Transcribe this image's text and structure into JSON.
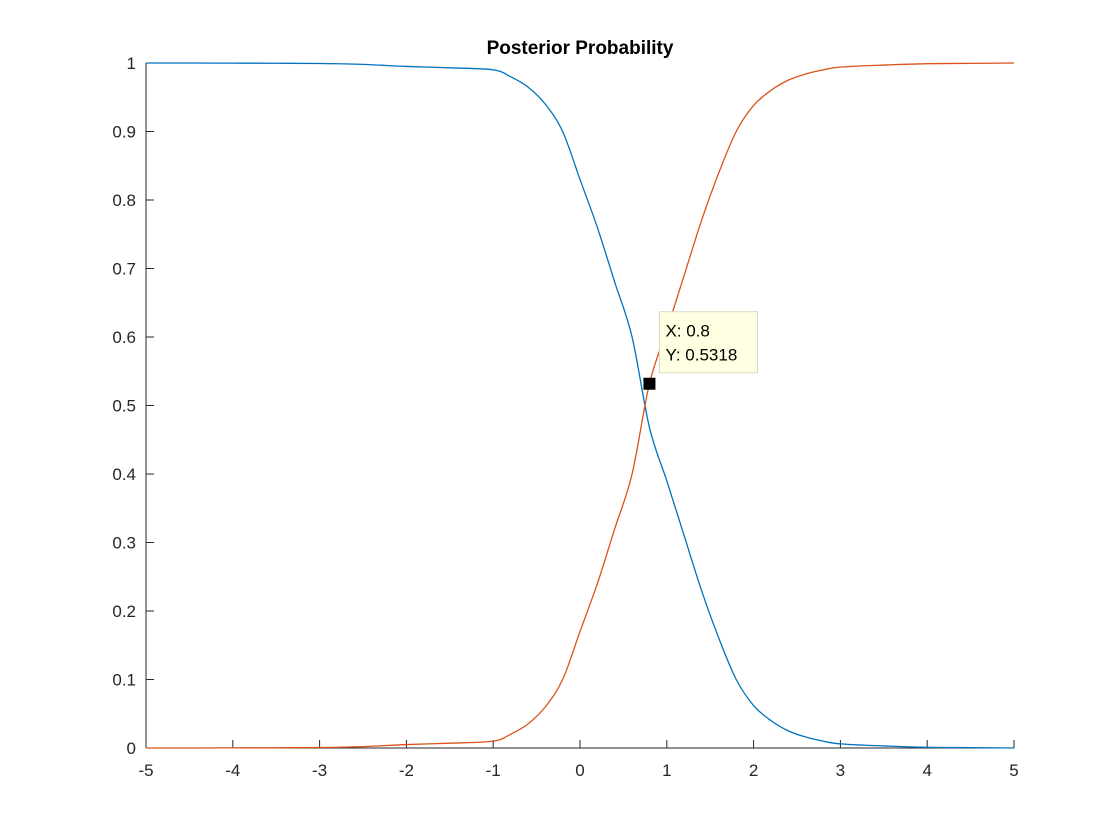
{
  "chart_data": {
    "type": "line",
    "title": "Posterior Probability",
    "xlabel": "",
    "ylabel": "",
    "xlim": [
      -5,
      5
    ],
    "ylim": [
      0,
      1
    ],
    "xticks": [
      "-5",
      "-4",
      "-3",
      "-2",
      "-1",
      "0",
      "1",
      "2",
      "3",
      "4",
      "5"
    ],
    "yticks": [
      "0",
      "0.1",
      "0.2",
      "0.3",
      "0.4",
      "0.5",
      "0.6",
      "0.7",
      "0.8",
      "0.9",
      "1"
    ],
    "grid": false,
    "legend": "none",
    "x": [
      -5,
      -4.5,
      -4,
      -3.5,
      -3,
      -2.5,
      -2,
      -1.5,
      -1,
      -0.8,
      -0.6,
      -0.4,
      -0.2,
      0,
      0.2,
      0.4,
      0.6,
      0.8,
      1,
      1.2,
      1.4,
      1.6,
      1.8,
      2,
      2.2,
      2.4,
      2.6,
      2.8,
      3,
      3.5,
      4,
      4.5,
      5
    ],
    "series": [
      {
        "color": "#0072BD",
        "values": [
          1.0,
          1.0,
          0.9998,
          0.9996,
          0.9993,
          0.998,
          0.995,
          0.993,
          0.99,
          0.98,
          0.965,
          0.94,
          0.9,
          0.83,
          0.76,
          0.68,
          0.6,
          0.468,
          0.39,
          0.31,
          0.23,
          0.16,
          0.1,
          0.062,
          0.04,
          0.025,
          0.016,
          0.01,
          0.006,
          0.003,
          0.001,
          0.0005,
          0.0
        ]
      },
      {
        "color": "#D95319",
        "values": [
          0.0,
          0.0,
          0.0002,
          0.0004,
          0.0007,
          0.002,
          0.005,
          0.007,
          0.01,
          0.02,
          0.035,
          0.06,
          0.1,
          0.17,
          0.24,
          0.32,
          0.4,
          0.5318,
          0.61,
          0.69,
          0.77,
          0.84,
          0.9,
          0.938,
          0.96,
          0.975,
          0.984,
          0.99,
          0.994,
          0.997,
          0.999,
          0.9995,
          1.0
        ]
      }
    ],
    "datatip": {
      "x": 0.8,
      "y": 0.5318,
      "x_text": "X: 0.8",
      "y_text": "Y: 0.5318"
    }
  }
}
